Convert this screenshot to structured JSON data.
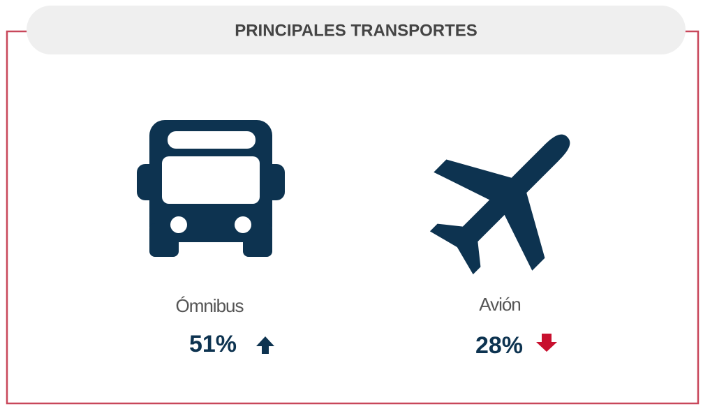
{
  "header": {
    "title": "PRINCIPALES TRANSPORTES"
  },
  "items": [
    {
      "label": "Ómnibus",
      "value": "51%"
    },
    {
      "label": "Avión",
      "value": "28%"
    }
  ]
}
